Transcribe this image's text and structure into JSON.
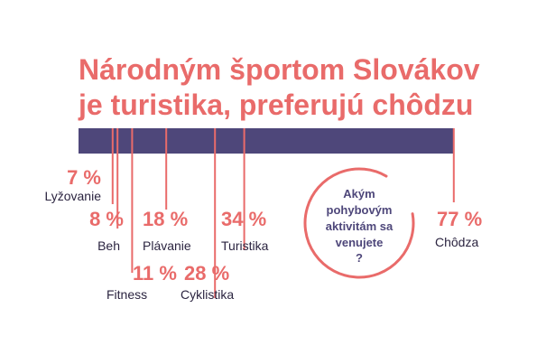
{
  "chart_data": {
    "type": "bar",
    "title_lines": [
      "Národným športom Slovákov",
      "je turistika, preferujú chôdzu"
    ],
    "question_lines": [
      "Akým",
      "pohybovým",
      "aktivitám sa",
      "venujete",
      "?"
    ],
    "colors": {
      "accent": "#e96b6a",
      "bar": "#4e477a",
      "text": "#2b2440"
    },
    "unit": "%",
    "xlim": [
      0,
      80
    ],
    "categories": [
      "Lyžovanie",
      "Beh",
      "Fitness",
      "Plávanie",
      "Cyklistika",
      "Turistika",
      "Chôdza"
    ],
    "values": [
      7,
      8,
      11,
      18,
      28,
      34,
      77
    ],
    "pct_labels": [
      "7 %",
      "8 %",
      "11 %",
      "18 %",
      "28 %",
      "34 %",
      "77 %"
    ]
  }
}
